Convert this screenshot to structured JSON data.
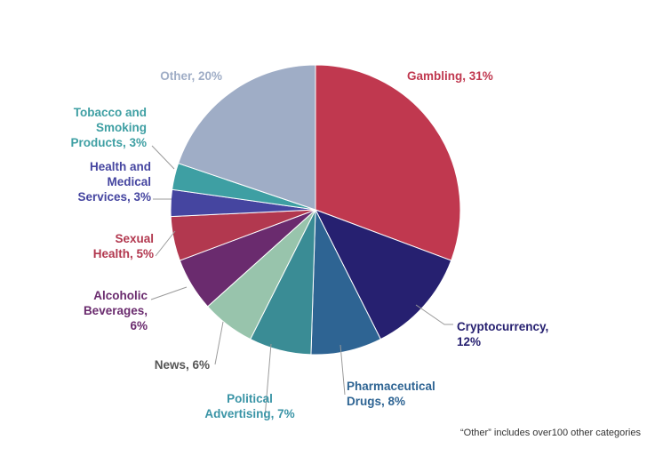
{
  "chart_data": {
    "type": "pie",
    "start_angle_deg": 0,
    "direction": "clockwise",
    "slices": [
      {
        "label": [
          "Gambling, 31%"
        ],
        "value": 31,
        "color": "#c0384f",
        "label_color": "#c0384f"
      },
      {
        "label": [
          "Cryptocurrency,",
          "12%"
        ],
        "value": 12,
        "color": "#262070",
        "label_color": "#262070"
      },
      {
        "label": [
          "Pharmaceutical",
          "Drugs, 8%"
        ],
        "value": 8,
        "color": "#2e6493",
        "label_color": "#2e6493"
      },
      {
        "label": [
          "Political",
          "Advertising, 7%"
        ],
        "value": 7,
        "color": "#3a8c95",
        "label_color": "#3a94a6"
      },
      {
        "label": [
          "News, 6%"
        ],
        "value": 6,
        "color": "#98c4ac",
        "label_color": "#555555"
      },
      {
        "label": [
          "Alcoholic",
          "Beverages,",
          "6%"
        ],
        "value": 6,
        "color": "#6a2b6e",
        "label_color": "#6a2b6e"
      },
      {
        "label": [
          "Sexual",
          "Health, 5%"
        ],
        "value": 5,
        "color": "#b2384f",
        "label_color": "#b2384f"
      },
      {
        "label": [
          "Health and",
          "Medical",
          "Services, 3%"
        ],
        "value": 3,
        "color": "#4545a0",
        "label_color": "#4545a0"
      },
      {
        "label": [
          "Tobacco and",
          "Smoking",
          "Products, 3%"
        ],
        "value": 3,
        "color": "#3e9fa3",
        "label_color": "#3e9fa3"
      },
      {
        "label": [
          "Other, 20%"
        ],
        "value": 20,
        "color": "#9fadc6",
        "label_color": "#9fadc6"
      }
    ],
    "footnote": "“Other” includes over100 other categories"
  }
}
